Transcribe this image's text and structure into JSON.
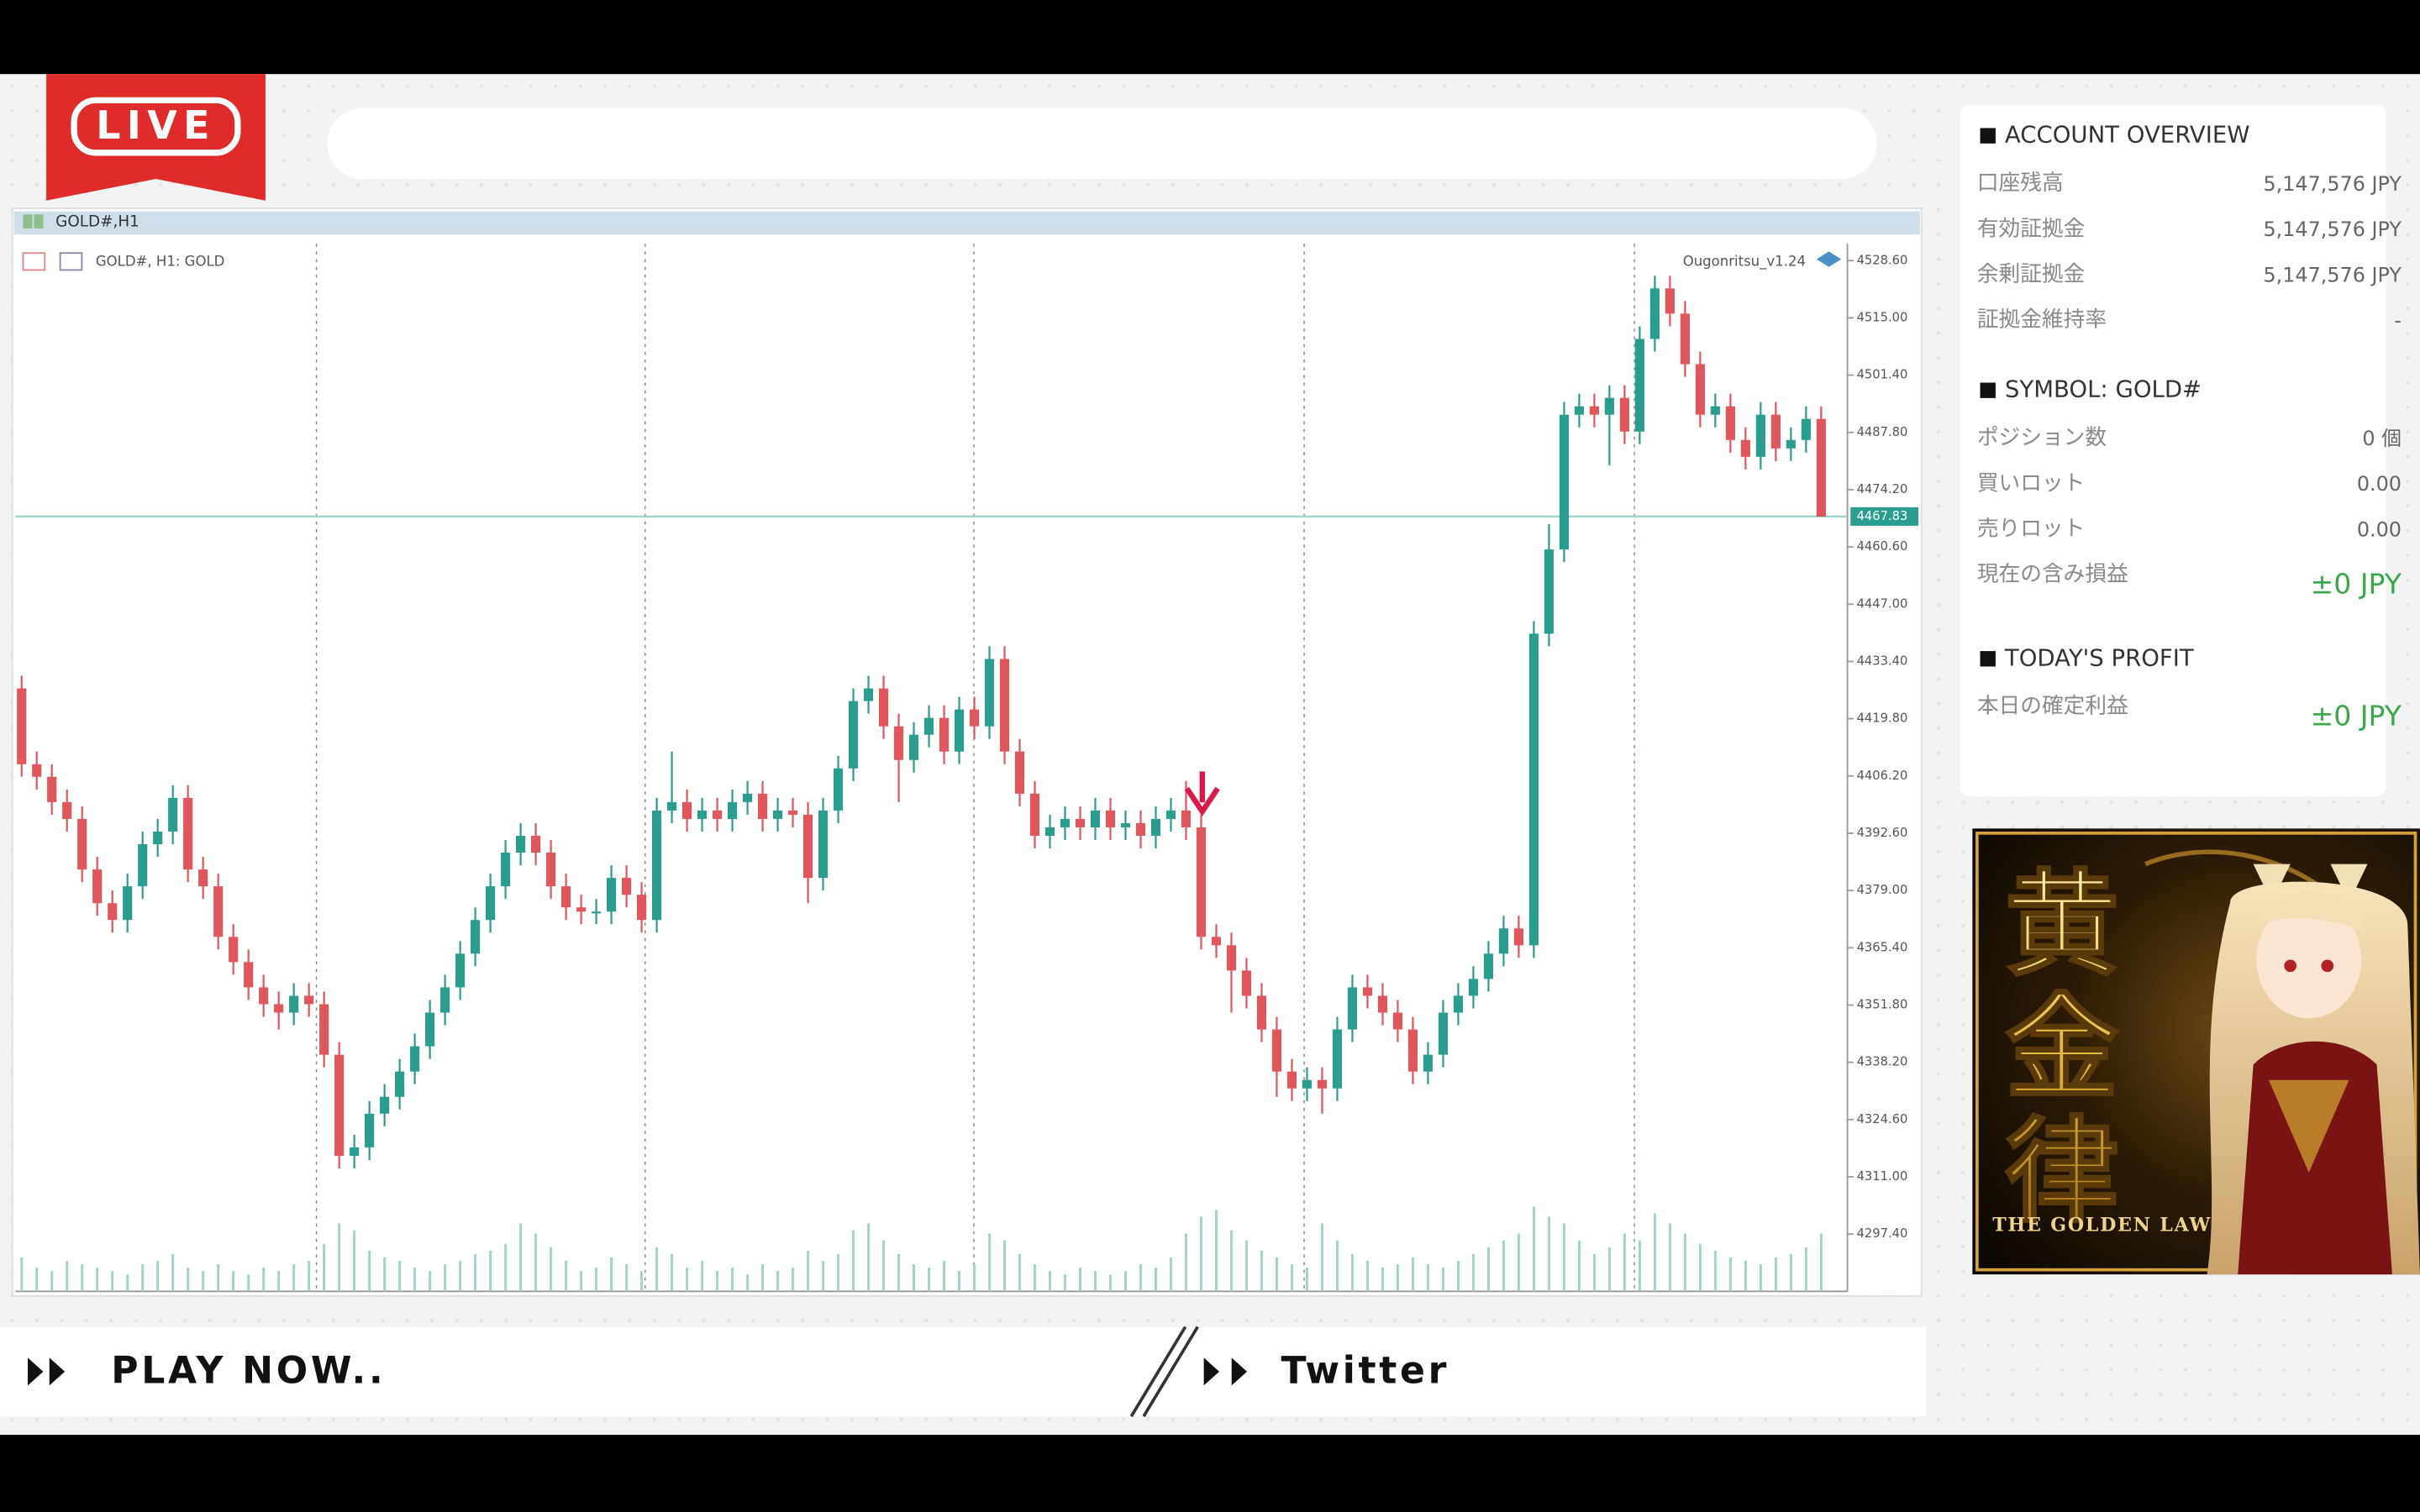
{
  "live_badge": "LIVE",
  "chart_window": {
    "title": "GOLD#,H1",
    "symbol_label": "GOLD#, H1:  GOLD",
    "indicator": "Ougonritsu_v1.24",
    "chart_data": {
      "type": "candlestick",
      "open": [
        4427,
        4409,
        4406,
        4400,
        4396,
        4384,
        4376,
        4372,
        4380,
        4390,
        4393,
        4401,
        4384,
        4380,
        4368,
        4362,
        4356,
        4352,
        4350,
        4354,
        4352,
        4340,
        4316,
        4318,
        4326,
        4330,
        4336,
        4342,
        4350,
        4356,
        4364,
        4372,
        4380,
        4388,
        4392,
        4388,
        4380,
        4375,
        4374,
        4374,
        4382,
        4378,
        4372,
        4398,
        4400,
        4396,
        4398,
        4396,
        4400,
        4402,
        4396,
        4398,
        4397,
        4382,
        4398,
        4408,
        4424,
        4427,
        4418,
        4410,
        4416,
        4420,
        4412,
        4422,
        4418,
        4434,
        4412,
        4402,
        4392,
        4394,
        4396,
        4394,
        4398,
        4394,
        4395,
        4392,
        4396,
        4398,
        4394,
        4368,
        4366,
        4360,
        4354,
        4346,
        4336,
        4332,
        4334,
        4332,
        4346,
        4356,
        4354,
        4350,
        4346,
        4336,
        4340,
        4350,
        4354,
        4358,
        4364,
        4370,
        4366,
        4440,
        4460,
        4492,
        4494,
        4492,
        4496,
        4488,
        4510,
        4522,
        4516,
        4504,
        4492,
        4494,
        4486,
        4482,
        4492,
        4484,
        4486,
        4491
      ],
      "high": [
        4430,
        4412,
        4409,
        4403,
        4399,
        4387,
        4379,
        4383,
        4393,
        4396,
        4404,
        4404,
        4387,
        4383,
        4371,
        4365,
        4359,
        4355,
        4357,
        4357,
        4355,
        4343,
        4321,
        4329,
        4333,
        4339,
        4345,
        4353,
        4359,
        4367,
        4375,
        4383,
        4391,
        4395,
        4395,
        4391,
        4383,
        4378,
        4377,
        4385,
        4385,
        4381,
        4401,
        4412,
        4403,
        4401,
        4401,
        4403,
        4405,
        4405,
        4401,
        4401,
        4400,
        4401,
        4411,
        4427,
        4430,
        4430,
        4421,
        4419,
        4423,
        4423,
        4425,
        4425,
        4437,
        4437,
        4415,
        4405,
        4397,
        4399,
        4399,
        4401,
        4401,
        4398,
        4398,
        4399,
        4401,
        4405,
        4397,
        4371,
        4369,
        4363,
        4357,
        4349,
        4339,
        4337,
        4337,
        4349,
        4359,
        4359,
        4357,
        4353,
        4349,
        4343,
        4353,
        4357,
        4361,
        4367,
        4373,
        4373,
        4443,
        4466,
        4495,
        4497,
        4497,
        4499,
        4499,
        4513,
        4525,
        4525,
        4519,
        4507,
        4497,
        4497,
        4489,
        4495,
        4495,
        4489,
        4494,
        4494
      ],
      "low": [
        4406,
        4403,
        4397,
        4393,
        4381,
        4373,
        4369,
        4369,
        4377,
        4387,
        4390,
        4381,
        4377,
        4365,
        4359,
        4353,
        4349,
        4346,
        4347,
        4349,
        4337,
        4313,
        4313,
        4315,
        4323,
        4327,
        4333,
        4339,
        4347,
        4353,
        4361,
        4369,
        4377,
        4385,
        4385,
        4377,
        4372,
        4371,
        4371,
        4371,
        4375,
        4369,
        4369,
        4395,
        4393,
        4393,
        4393,
        4393,
        4397,
        4393,
        4393,
        4394,
        4376,
        4379,
        4395,
        4405,
        4421,
        4415,
        4400,
        4407,
        4413,
        4409,
        4409,
        4415,
        4415,
        4409,
        4399,
        4389,
        4389,
        4391,
        4391,
        4391,
        4391,
        4391,
        4389,
        4389,
        4393,
        4391,
        4365,
        4363,
        4350,
        4351,
        4343,
        4330,
        4329,
        4329,
        4326,
        4329,
        4343,
        4351,
        4347,
        4343,
        4333,
        4333,
        4337,
        4347,
        4351,
        4355,
        4361,
        4363,
        4363,
        4437,
        4457,
        4489,
        4489,
        4480,
        4485,
        4485,
        4507,
        4513,
        4501,
        4489,
        4489,
        4483,
        4479,
        4479,
        4481,
        4481,
        4483,
        4467.8
      ],
      "close": [
        4409,
        4406,
        4400,
        4396,
        4384,
        4376,
        4372,
        4380,
        4390,
        4393,
        4401,
        4384,
        4380,
        4368,
        4362,
        4356,
        4352,
        4350,
        4354,
        4352,
        4340,
        4316,
        4318,
        4326,
        4330,
        4336,
        4342,
        4350,
        4356,
        4364,
        4372,
        4380,
        4388,
        4392,
        4388,
        4380,
        4375,
        4374,
        4374,
        4382,
        4378,
        4372,
        4398,
        4400,
        4396,
        4398,
        4396,
        4400,
        4402,
        4396,
        4398,
        4397,
        4382,
        4398,
        4408,
        4424,
        4427,
        4418,
        4410,
        4416,
        4420,
        4412,
        4422,
        4418,
        4434,
        4412,
        4402,
        4392,
        4394,
        4396,
        4394,
        4398,
        4394,
        4395,
        4392,
        4396,
        4398,
        4394,
        4368,
        4366,
        4360,
        4354,
        4346,
        4336,
        4332,
        4334,
        4332,
        4346,
        4356,
        4354,
        4350,
        4346,
        4336,
        4340,
        4350,
        4354,
        4358,
        4364,
        4370,
        4366,
        4440,
        4460,
        4492,
        4494,
        4492,
        4496,
        4488,
        4510,
        4522,
        4516,
        4504,
        4492,
        4494,
        4486,
        4482,
        4492,
        4484,
        4486,
        4491,
        4467.8
      ],
      "volume": [
        20,
        14,
        12,
        18,
        16,
        14,
        12,
        10,
        16,
        18,
        22,
        14,
        12,
        16,
        12,
        10,
        14,
        12,
        16,
        18,
        28,
        40,
        36,
        24,
        20,
        18,
        14,
        12,
        16,
        18,
        22,
        24,
        28,
        40,
        34,
        26,
        18,
        12,
        14,
        20,
        16,
        12,
        26,
        22,
        14,
        18,
        12,
        14,
        10,
        16,
        12,
        14,
        24,
        18,
        22,
        36,
        40,
        30,
        22,
        16,
        14,
        18,
        12,
        16,
        34,
        30,
        22,
        16,
        12,
        10,
        14,
        12,
        10,
        12,
        16,
        14,
        20,
        34,
        44,
        48,
        36,
        30,
        24,
        20,
        16,
        14,
        40,
        30,
        22,
        18,
        14,
        16,
        20,
        16,
        14,
        18,
        22,
        26,
        30,
        34,
        50,
        44,
        40,
        30,
        22,
        26,
        34,
        30,
        46,
        40,
        34,
        28,
        24,
        20,
        18,
        16,
        20,
        22,
        26,
        34
      ],
      "up_color": "#2a9d8f",
      "down_color": "#e0575b",
      "volume_color": "#9fd3ca",
      "current_price": 4467.83,
      "ylim": [
        4283.8,
        4532.6
      ],
      "yticks": [
        {
          "value": 4528.6,
          "label": "4528.60"
        },
        {
          "value": 4515.0,
          "label": "4515.00"
        },
        {
          "value": 4501.4,
          "label": "4501.40"
        },
        {
          "value": 4487.8,
          "label": "4487.80"
        },
        {
          "value": 4474.2,
          "label": "4474.20"
        },
        {
          "value": 4460.6,
          "label": "4460.60"
        },
        {
          "value": 4447.0,
          "label": "4447.00"
        },
        {
          "value": 4433.4,
          "label": "4433.40"
        },
        {
          "value": 4419.8,
          "label": "4419.80"
        },
        {
          "value": 4406.2,
          "label": "4406.20"
        },
        {
          "value": 4392.6,
          "label": "4392.60"
        },
        {
          "value": 4379.0,
          "label": "4379.00"
        },
        {
          "value": 4365.4,
          "label": "4365.40"
        },
        {
          "value": 4351.8,
          "label": "4351.80"
        },
        {
          "value": 4338.2,
          "label": "4338.20"
        },
        {
          "value": 4324.6,
          "label": "4324.60"
        },
        {
          "value": 4311.0,
          "label": "4311.00"
        },
        {
          "value": 4297.4,
          "label": "4297.40"
        }
      ]
    }
  },
  "side_panel": {
    "sections": [
      {
        "title": "ACCOUNT OVERVIEW",
        "rows": [
          {
            "label": "口座残高",
            "value": "5,147,576 JPY"
          },
          {
            "label": "有効証拠金",
            "value": "5,147,576 JPY"
          },
          {
            "label": "余剰証拠金",
            "value": "5,147,576 JPY"
          },
          {
            "label": "証拠金維持率",
            "value": "-"
          }
        ]
      },
      {
        "title": "SYMBOL: GOLD#",
        "rows": [
          {
            "label": "ポジション数",
            "value": "0 個"
          },
          {
            "label": "買いロット",
            "value": "0.00"
          },
          {
            "label": "売りロット",
            "value": "0.00"
          },
          {
            "label": "現在の含み損益",
            "value": "±0 JPY"
          }
        ]
      },
      {
        "title": "TODAY'S PROFIT",
        "rows": [
          {
            "label": "本日の確定利益",
            "value": "±0 JPY"
          }
        ]
      }
    ]
  },
  "banner": {
    "title": "黄金律",
    "subtitle": "THE GOLDEN LAW"
  },
  "footer": {
    "play": "PLAY NOW..",
    "twitter": "Twitter"
  }
}
